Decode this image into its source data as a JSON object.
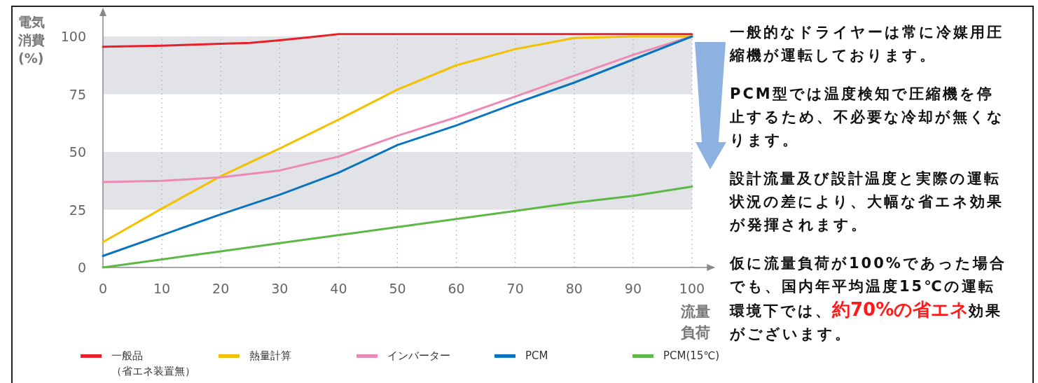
{
  "chart_data": {
    "type": "line",
    "xlabel": "流量負荷",
    "ylabel": "電気消費(%)",
    "xlim": [
      0,
      103
    ],
    "ylim": [
      0,
      110
    ],
    "xticks": [
      0,
      10,
      20,
      30,
      40,
      50,
      60,
      70,
      80,
      90,
      100
    ],
    "yticks": [
      0,
      25,
      50,
      75,
      100
    ],
    "grid": "x",
    "legend": "bottom",
    "marker": "none",
    "line_style": "solid",
    "bands": [
      {
        "axis": "y",
        "from": 25,
        "to": 50,
        "color": "#e1e3e6"
      },
      {
        "axis": "y",
        "from": 75,
        "to": 100,
        "color": "#e1e3e6"
      }
    ],
    "series": [
      {
        "name": "一般品（省エネ装置無）",
        "color": "#e8202a",
        "x": [
          0,
          10,
          20,
          25,
          30,
          35,
          40,
          100
        ],
        "values": [
          95.5,
          96,
          96.8,
          97.2,
          98.3,
          99.6,
          101,
          101
        ]
      },
      {
        "name": "熱量計算",
        "color": "#f5c000",
        "x": [
          0,
          10,
          20,
          30,
          40,
          50,
          60,
          70,
          80,
          90,
          100
        ],
        "values": [
          11,
          25.5,
          39.5,
          51.5,
          64,
          77,
          87.5,
          94.5,
          99.3,
          100,
          100
        ]
      },
      {
        "name": "インバーター",
        "color": "#ee88b5",
        "x": [
          0,
          10,
          20,
          30,
          40,
          50,
          60,
          70,
          80,
          90,
          100
        ],
        "values": [
          37,
          37.5,
          39,
          42,
          48,
          57,
          65,
          74,
          83,
          92,
          100
        ]
      },
      {
        "name": "PCM",
        "color": "#0b74c0",
        "x": [
          0,
          10,
          20,
          30,
          40,
          50,
          60,
          70,
          80,
          90,
          100
        ],
        "values": [
          5,
          14,
          23,
          31.5,
          41,
          53,
          61.5,
          71,
          80,
          90,
          100
        ]
      },
      {
        "name": "PCM(15℃)",
        "color": "#5cb847",
        "x": [
          0,
          10,
          20,
          30,
          40,
          50,
          60,
          70,
          80,
          90,
          100
        ],
        "values": [
          0,
          3.5,
          7,
          10.5,
          14,
          17.5,
          21,
          24.5,
          28,
          31,
          35
        ]
      }
    ],
    "annotations": [
      "一般的なドライヤーは常に冷媒用圧縮機が運転しております。",
      "PCM型では温度検知で圧縮機を停止するため、不必要な冷却が無くなります。",
      "設計流量及び設計温度と実際の運転状況の差により、大幅な省エネ効果が発揮されます。",
      "仮に流量負荷が100%であった場合でも、国内年平均温度15℃の運転環境下では、",
      "約70%の省エネ",
      "効果がございます。"
    ]
  }
}
